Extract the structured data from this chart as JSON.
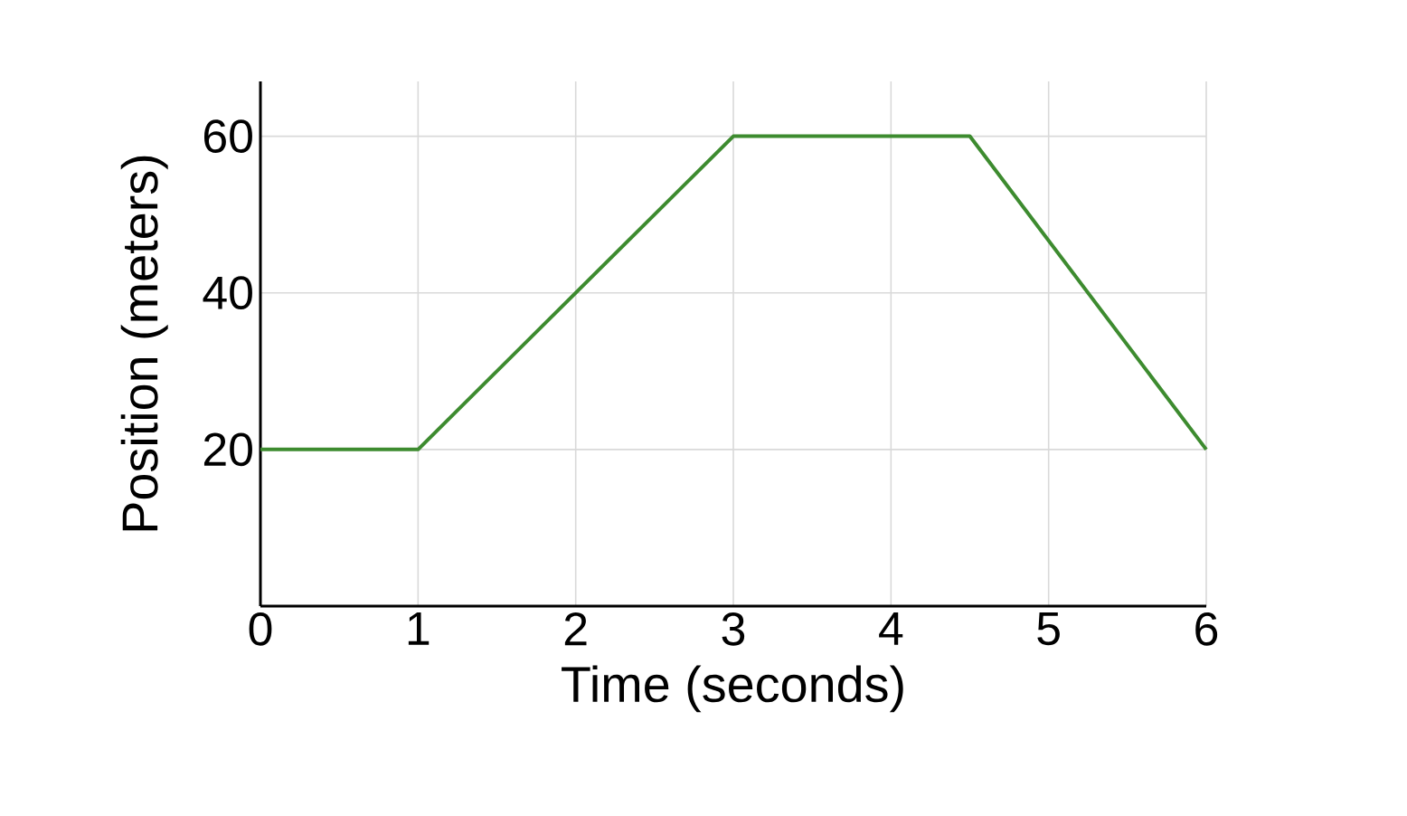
{
  "chart_data": {
    "type": "line",
    "xlabel": "Time (seconds)",
    "ylabel": "Position (meters)",
    "x": [
      0,
      1,
      3,
      4.5,
      6
    ],
    "series": [
      {
        "color": "#3d8b2f",
        "values": [
          20,
          20,
          60,
          60,
          20
        ]
      }
    ],
    "xlim": [
      0,
      6
    ],
    "ylim": [
      0,
      67
    ],
    "xticks": [
      0,
      1,
      2,
      3,
      4,
      5,
      6
    ],
    "yticks": [
      20,
      40,
      60
    ],
    "grid": true,
    "marker": "none",
    "line_style": "solid"
  }
}
